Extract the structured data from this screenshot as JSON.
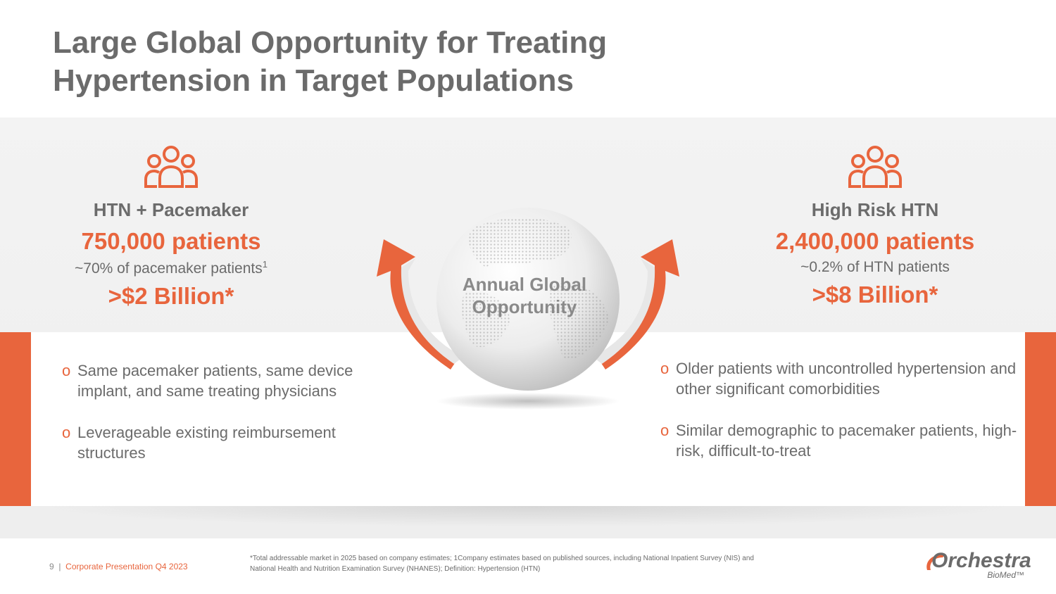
{
  "slide": {
    "title_line1": "Large Global Opportunity for Treating",
    "title_line2": "Hypertension in Target Populations"
  },
  "center": {
    "label_line1": "Annual Global",
    "label_line2": "Opportunity"
  },
  "left": {
    "heading": "HTN + Pacemaker",
    "count": "750,000 patients",
    "sub": "~70% of pacemaker patients",
    "sub_sup": "1",
    "amount": ">$2 Billion*",
    "icon": "people-group-icon",
    "bullets": [
      "Same pacemaker patients, same device implant, and same treating physicians",
      "Leverageable existing reimbursement structures"
    ]
  },
  "right": {
    "heading": "High Risk HTN",
    "count": "2,400,000 patients",
    "sub": "~0.2% of HTN patients",
    "amount": ">$8 Billion*",
    "icon": "people-group-icon",
    "bullets": [
      "Older patients with uncontrolled hypertension and other significant comorbidities",
      "Similar demographic to pacemaker patients, high-risk, difficult-to-treat"
    ]
  },
  "bullet_marker": "o",
  "footer": {
    "page_number": "9",
    "separator": "|",
    "deck_name": "Corporate Presentation Q4 2023",
    "footnote_line1": "*Total addressable market in 2025 based on company estimates; 1Company estimates based on published sources, including National Inpatient Survey (NIS) and",
    "footnote_line2": "National Health and Nutrition Examination Survey (NHANES); Definition: Hypertension (HTN)"
  },
  "logo": {
    "wordmark": "Orchestra",
    "submark": "BioMed™"
  },
  "colors": {
    "accent": "#e8653d",
    "text_gray": "#6b6b6b"
  }
}
